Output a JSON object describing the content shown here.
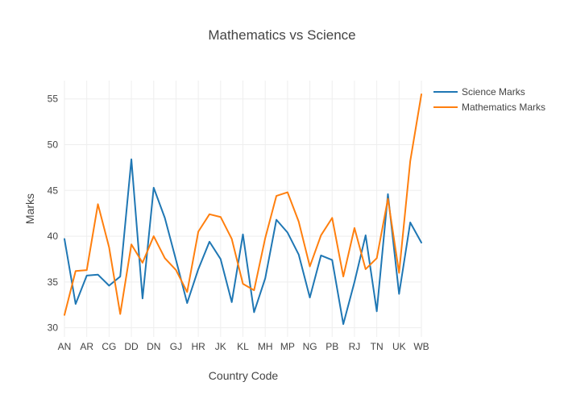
{
  "chart_data": {
    "type": "line",
    "title": "Mathematics vs Science",
    "xlabel": "Country Code",
    "ylabel": "Marks",
    "grid": true,
    "legend_position": "top-right",
    "ylim": [
      29,
      57
    ],
    "yticks": [
      30,
      35,
      40,
      45,
      50,
      55
    ],
    "x_tick_labels": [
      "AN",
      "AR",
      "CG",
      "DD",
      "DN",
      "GJ",
      "HR",
      "JK",
      "KL",
      "MH",
      "MP",
      "NG",
      "PB",
      "RJ",
      "TN",
      "UK",
      "WB"
    ],
    "x_count": 33,
    "x_tick_step": 2,
    "series": [
      {
        "name": "Science Marks",
        "color": "#1f77b4",
        "values": [
          39.7,
          32.6,
          35.7,
          35.8,
          34.6,
          35.6,
          48.4,
          33.2,
          45.3,
          42.0,
          37.4,
          32.7,
          36.4,
          39.4,
          37.5,
          32.8,
          40.2,
          31.7,
          35.4,
          41.8,
          40.4,
          38.0,
          33.3,
          37.9,
          37.4,
          30.4,
          35.0,
          40.1,
          31.8,
          44.6,
          33.7,
          41.5,
          39.3
        ]
      },
      {
        "name": "Mathematics Marks",
        "color": "#ff7f0e",
        "values": [
          31.4,
          36.2,
          36.3,
          43.5,
          38.8,
          31.5,
          39.1,
          37.1,
          40.0,
          37.6,
          36.3,
          33.9,
          40.5,
          42.4,
          42.1,
          39.7,
          34.8,
          34.1,
          39.8,
          44.4,
          44.8,
          41.6,
          36.7,
          40.1,
          42.0,
          35.6,
          40.9,
          36.4,
          37.6,
          44.1,
          36.0,
          48.2,
          55.5
        ]
      }
    ]
  }
}
